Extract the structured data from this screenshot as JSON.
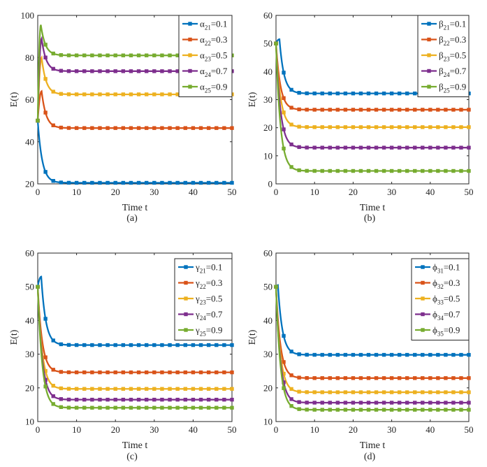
{
  "figure": {
    "panels": [
      "a",
      "b",
      "c",
      "d"
    ]
  },
  "chart_data": [
    {
      "type": "line",
      "panel_label": "(a)",
      "xlabel": "Time t",
      "ylabel": "E(t)",
      "xlim": [
        0,
        50
      ],
      "ylim": [
        20,
        100
      ],
      "xticks": [
        0,
        10,
        20,
        30,
        40,
        50
      ],
      "yticks": [
        20,
        40,
        60,
        80,
        100
      ],
      "legend_position": "top-right",
      "legend": [
        {
          "sym": "α",
          "sub": "21",
          "val": "=0.1"
        },
        {
          "sym": "α",
          "sub": "22",
          "val": "=0.3"
        },
        {
          "sym": "α",
          "sub": "23",
          "val": "=0.5"
        },
        {
          "sym": "α",
          "sub": "24",
          "val": "=0.7"
        },
        {
          "sym": "α",
          "sub": "25",
          "val": "=0.9"
        }
      ],
      "series": [
        {
          "name": "α21=0.1",
          "color": "#0072BD",
          "start": 50,
          "peak": 50,
          "peak_t": 0,
          "final": 20.5
        },
        {
          "name": "α22=0.3",
          "color": "#D95319",
          "start": 50,
          "peak": 64,
          "peak_t": 1,
          "final": 46.5
        },
        {
          "name": "α23=0.5",
          "color": "#EDB120",
          "start": 50,
          "peak": 80,
          "peak_t": 1,
          "final": 62.5
        },
        {
          "name": "α24=0.7",
          "color": "#7E2F8E",
          "start": 50,
          "peak": 89,
          "peak_t": 1,
          "final": 73.5
        },
        {
          "name": "α25=0.9",
          "color": "#77AC30",
          "start": 50,
          "peak": 95.5,
          "peak_t": 0.8,
          "final": 81
        }
      ]
    },
    {
      "type": "line",
      "panel_label": "(b)",
      "xlabel": "Time t",
      "ylabel": "E(t)",
      "xlim": [
        0,
        50
      ],
      "ylim": [
        0,
        60
      ],
      "xticks": [
        0,
        10,
        20,
        30,
        40,
        50
      ],
      "yticks": [
        0,
        10,
        20,
        30,
        40,
        50,
        60
      ],
      "legend_position": "top-right",
      "legend": [
        {
          "sym": "β",
          "sub": "21",
          "val": "=0.1"
        },
        {
          "sym": "β",
          "sub": "22",
          "val": "=0.3"
        },
        {
          "sym": "β",
          "sub": "23",
          "val": "=0.5"
        },
        {
          "sym": "β",
          "sub": "24",
          "val": "=0.7"
        },
        {
          "sym": "β",
          "sub": "25",
          "val": "=0.9"
        }
      ],
      "series": [
        {
          "name": "β21=0.1",
          "color": "#0072BD",
          "start": 50,
          "peak": 51.5,
          "peak_t": 0.9,
          "final": 32.2
        },
        {
          "name": "β22=0.3",
          "color": "#D95319",
          "start": 50,
          "peak": 50,
          "peak_t": 0,
          "final": 26.4
        },
        {
          "name": "β23=0.5",
          "color": "#EDB120",
          "start": 50,
          "peak": 50,
          "peak_t": 0,
          "final": 20.2
        },
        {
          "name": "β24=0.7",
          "color": "#7E2F8E",
          "start": 50,
          "peak": 50,
          "peak_t": 0,
          "final": 12.9
        },
        {
          "name": "β25=0.9",
          "color": "#77AC30",
          "start": 50,
          "peak": 50,
          "peak_t": 0,
          "final": 4.6
        }
      ]
    },
    {
      "type": "line",
      "panel_label": "(c)",
      "xlabel": "Time t",
      "ylabel": "E(t)",
      "xlim": [
        0,
        50
      ],
      "ylim": [
        10,
        60
      ],
      "xticks": [
        0,
        10,
        20,
        30,
        40,
        50
      ],
      "yticks": [
        10,
        20,
        30,
        40,
        50,
        60
      ],
      "legend_position": "top-right",
      "legend": [
        {
          "sym": "γ",
          "sub": "21",
          "val": "=0.1"
        },
        {
          "sym": "γ",
          "sub": "22",
          "val": "=0.3"
        },
        {
          "sym": "γ",
          "sub": "23",
          "val": "=0.5"
        },
        {
          "sym": "γ",
          "sub": "24",
          "val": "=0.7"
        },
        {
          "sym": "γ",
          "sub": "25",
          "val": "=0.9"
        }
      ],
      "series": [
        {
          "name": "γ21=0.1",
          "color": "#0072BD",
          "start": 50,
          "peak": 53,
          "peak_t": 0.9,
          "final": 32.7
        },
        {
          "name": "γ22=0.3",
          "color": "#D95319",
          "start": 50,
          "peak": 50,
          "peak_t": 0,
          "final": 24.6
        },
        {
          "name": "γ23=0.5",
          "color": "#EDB120",
          "start": 50,
          "peak": 50,
          "peak_t": 0,
          "final": 19.7
        },
        {
          "name": "γ24=0.7",
          "color": "#7E2F8E",
          "start": 50,
          "peak": 50,
          "peak_t": 0,
          "final": 16.5
        },
        {
          "name": "γ25=0.9",
          "color": "#77AC30",
          "start": 50,
          "peak": 50,
          "peak_t": 0,
          "final": 14.1
        }
      ]
    },
    {
      "type": "line",
      "panel_label": "(d)",
      "xlabel": "Time t",
      "ylabel": "E(t)",
      "xlim": [
        0,
        50
      ],
      "ylim": [
        10,
        60
      ],
      "xticks": [
        0,
        10,
        20,
        30,
        40,
        50
      ],
      "yticks": [
        10,
        20,
        30,
        40,
        50,
        60
      ],
      "legend_position": "top-right",
      "legend": [
        {
          "sym": "ϕ",
          "sub": "31",
          "val": "=0.1"
        },
        {
          "sym": "ϕ",
          "sub": "32",
          "val": "=0.3"
        },
        {
          "sym": "ϕ",
          "sub": "33",
          "val": "=0.5"
        },
        {
          "sym": "ϕ",
          "sub": "34",
          "val": "=0.7"
        },
        {
          "sym": "ϕ",
          "sub": "35",
          "val": "=0.9"
        }
      ],
      "series": [
        {
          "name": "ϕ31=0.1",
          "color": "#0072BD",
          "start": 50,
          "peak": 50.5,
          "peak_t": 0.5,
          "final": 29.8
        },
        {
          "name": "ϕ32=0.3",
          "color": "#D95319",
          "start": 50,
          "peak": 50,
          "peak_t": 0,
          "final": 22.9
        },
        {
          "name": "ϕ33=0.5",
          "color": "#EDB120",
          "start": 50,
          "peak": 50,
          "peak_t": 0,
          "final": 18.7
        },
        {
          "name": "ϕ34=0.7",
          "color": "#7E2F8E",
          "start": 50,
          "peak": 50,
          "peak_t": 0,
          "final": 15.6
        },
        {
          "name": "ϕ35=0.9",
          "color": "#77AC30",
          "start": 50,
          "peak": 50,
          "peak_t": 0,
          "final": 13.5
        }
      ]
    }
  ]
}
